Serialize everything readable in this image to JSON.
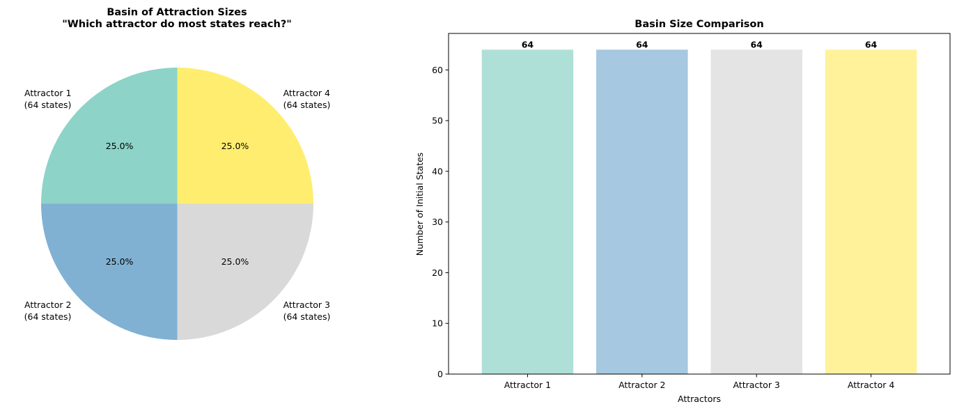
{
  "chart_data": [
    {
      "type": "pie",
      "title_line1": "Basin of Attraction Sizes",
      "title_line2": "\"Which attractor do most states reach?\"",
      "slices": [
        {
          "label": "Attractor 1",
          "sublabel": "(64 states)",
          "value": 64,
          "pct_label": "25.0%",
          "color": "#8dd3c7"
        },
        {
          "label": "Attractor 2",
          "sublabel": "(64 states)",
          "value": 64,
          "pct_label": "25.0%",
          "color": "#80b1d3"
        },
        {
          "label": "Attractor 3",
          "sublabel": "(64 states)",
          "value": 64,
          "pct_label": "25.0%",
          "color": "#d9d9d9"
        },
        {
          "label": "Attractor 4",
          "sublabel": "(64 states)",
          "value": 64,
          "pct_label": "25.0%",
          "color": "#ffed6f"
        }
      ]
    },
    {
      "type": "bar",
      "title": "Basin Size Comparison",
      "categories": [
        "Attractor 1",
        "Attractor 2",
        "Attractor 3",
        "Attractor 4"
      ],
      "values": [
        64,
        64,
        64,
        64
      ],
      "data_labels": [
        "64",
        "64",
        "64",
        "64"
      ],
      "colors": [
        "#8dd3c7",
        "#80b1d3",
        "#d9d9d9",
        "#ffed6f"
      ],
      "bar_opacity": 0.7,
      "xlabel": "Attractors",
      "ylabel": "Number of Initial States",
      "ylim": [
        0,
        67.2
      ],
      "yticks": [
        0,
        10,
        20,
        30,
        40,
        50,
        60
      ],
      "grid": false
    }
  ]
}
